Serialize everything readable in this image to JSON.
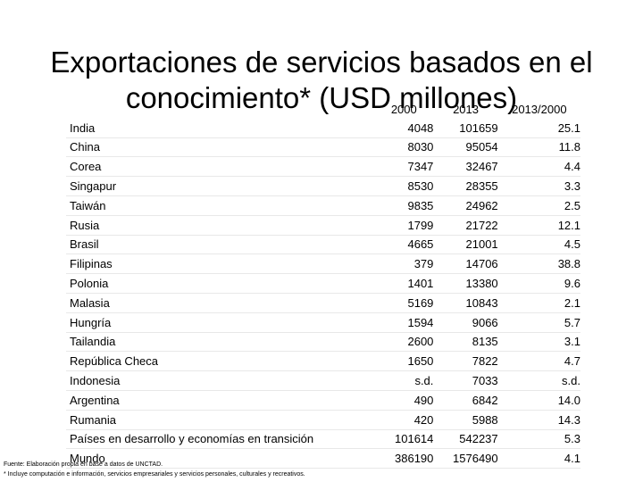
{
  "title": "Exportaciones de servicios basados en el conocimiento* (USD millones)",
  "table": {
    "headers": [
      "",
      "2000",
      "2013",
      "2013/2000"
    ],
    "rows": [
      [
        "India",
        "4048",
        "101659",
        "25.1"
      ],
      [
        "China",
        "8030",
        "95054",
        "11.8"
      ],
      [
        "Corea",
        "7347",
        "32467",
        "4.4"
      ],
      [
        "Singapur",
        "8530",
        "28355",
        "3.3"
      ],
      [
        "Taiwán",
        "9835",
        "24962",
        "2.5"
      ],
      [
        "Rusia",
        "1799",
        "21722",
        "12.1"
      ],
      [
        "Brasil",
        "4665",
        "21001",
        "4.5"
      ],
      [
        "Filipinas",
        "379",
        "14706",
        "38.8"
      ],
      [
        "Polonia",
        "1401",
        "13380",
        "9.6"
      ],
      [
        "Malasia",
        "5169",
        "10843",
        "2.1"
      ],
      [
        "Hungría",
        "1594",
        "9066",
        "5.7"
      ],
      [
        "Tailandia",
        "2600",
        "8135",
        "3.1"
      ],
      [
        "República Checa",
        "1650",
        "7822",
        "4.7"
      ],
      [
        "Indonesia",
        "s.d.",
        "7033",
        "s.d."
      ],
      [
        "Argentina",
        "490",
        "6842",
        "14.0"
      ],
      [
        "Rumania",
        "420",
        "5988",
        "14.3"
      ],
      [
        "Países en desarrollo y economías en transición",
        "101614",
        "542237",
        "5.3"
      ],
      [
        "Mundo",
        "386190",
        "1576490",
        "4.1"
      ]
    ]
  },
  "notes": {
    "source": "Fuente: Elaboración propia en base a datos de UNCTAD.",
    "footnote": "* Incluye computación e información, servicios empresariales y servicios personales, culturales y recreativos."
  }
}
